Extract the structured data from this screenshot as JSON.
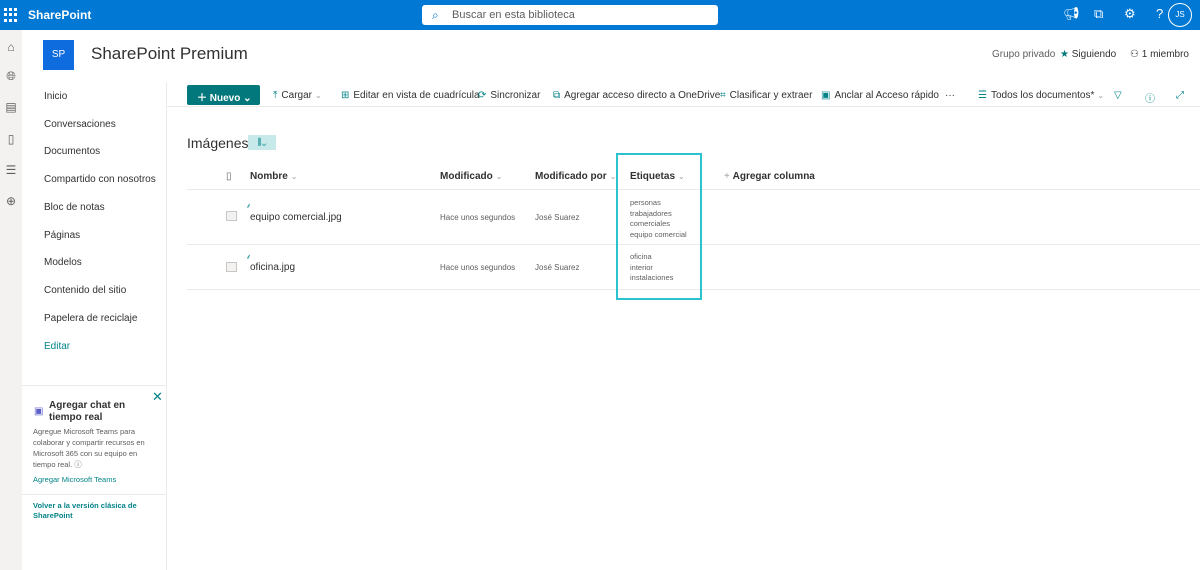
{
  "topbar": {
    "app_name": "SharePoint",
    "search_placeholder": "Buscar en esta biblioteca",
    "user_initials": "JS",
    "icons": [
      "waffle-icon",
      "megaphone-icon",
      "share-icon",
      "gear-icon",
      "help-icon"
    ],
    "help_glyph": "?"
  },
  "site": {
    "logo_text": "SP",
    "title": "SharePoint Premium",
    "privacy": "Grupo privado",
    "following": "Siguiendo",
    "members": "1 miembro"
  },
  "nav": {
    "items": [
      "Inicio",
      "Conversaciones",
      "Documentos",
      "Compartido con nosotros",
      "Bloc de notas",
      "Páginas",
      "Modelos",
      "Contenido del sitio",
      "Papelera de reciclaje"
    ],
    "edit": "Editar"
  },
  "teams_card": {
    "title": "Agregar chat en tiempo real",
    "body": "Agregue Microsoft Teams para colaborar y compartir recursos en Microsoft 365 con su equipo en tiempo real.",
    "link": "Agregar Microsoft Teams"
  },
  "classic_link": "Volver a la versión clásica de SharePoint",
  "commands": {
    "new": "Nuevo",
    "upload": "Cargar",
    "grid": "Editar en vista de cuadrícula",
    "sync": "Sincronizar",
    "shortcut": "Agregar acceso directo a OneDrive",
    "classify": "Clasificar y extraer",
    "pin": "Anclar al Acceso rápido",
    "more": "···",
    "view": "Todos los documentos*"
  },
  "library": {
    "title": "Imágenes",
    "columns": {
      "name": "Nombre",
      "modified": "Modificado",
      "modified_by": "Modificado por",
      "tags": "Etiquetas",
      "add_column": "Agregar columna"
    },
    "rows": [
      {
        "name": "equipo comercial.jpg",
        "modified": "Hace unos segundos",
        "modified_by": "José Suarez",
        "tags": [
          "personas",
          "trabajadores",
          "comerciales",
          "equipo comercial"
        ]
      },
      {
        "name": "oficina.jpg",
        "modified": "Hace unos segundos",
        "modified_by": "José Suarez",
        "tags": [
          "oficina",
          "interior",
          "instalaciones"
        ]
      }
    ]
  },
  "colors": {
    "suite_bar": "#0078d4",
    "accent": "#03787c",
    "highlight": "#2cc3d1"
  }
}
